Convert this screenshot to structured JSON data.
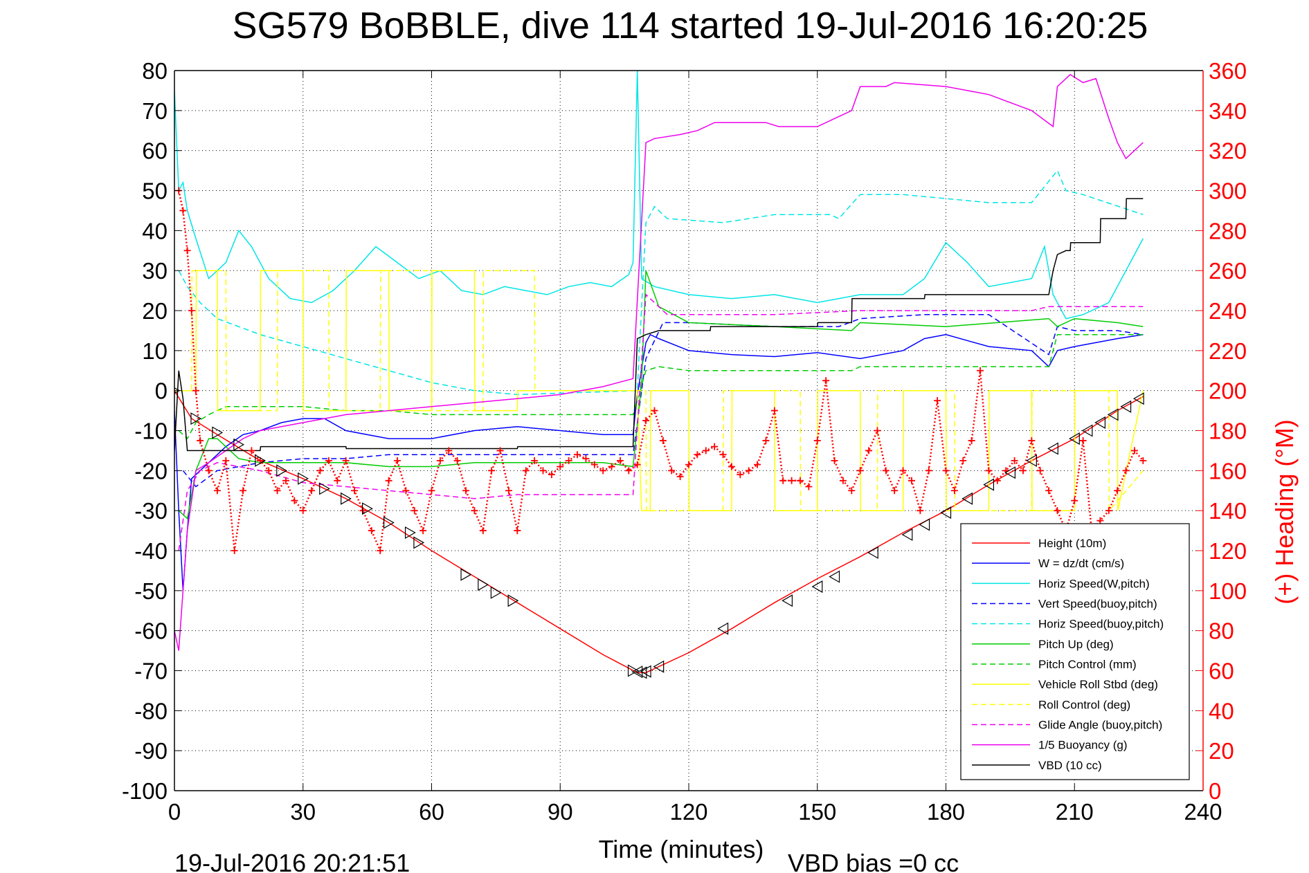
{
  "chart_data": {
    "type": "line",
    "title": "SG579 BoBBLE, dive 114 started 19-Jul-2016 16:20:25",
    "xlabel": "Time (minutes)",
    "ylabel_right": "(+) Heading (°M)",
    "xlim": [
      0,
      240
    ],
    "ylim": [
      -100,
      80
    ],
    "ylim_right": [
      0,
      360
    ],
    "x_ticks": [
      "0",
      "30",
      "60",
      "90",
      "120",
      "150",
      "180",
      "210",
      "240"
    ],
    "y_ticks": [
      "80",
      "70",
      "60",
      "50",
      "40",
      "30",
      "20",
      "10",
      "0",
      "-10",
      "-20",
      "-30",
      "-40",
      "-50",
      "-60",
      "-70",
      "-80",
      "-90",
      "-100"
    ],
    "y_ticks_right": [
      "360",
      "340",
      "320",
      "300",
      "280",
      "260",
      "240",
      "220",
      "200",
      "180",
      "160",
      "140",
      "120",
      "100",
      "80",
      "60",
      "40",
      "20",
      "0"
    ],
    "grid": "dotted",
    "legend_position": "bottom-right",
    "footer_left": "19-Jul-2016 20:21:51",
    "footer_right": "VBD bias =0 cc",
    "series": [
      {
        "name": "Height (10m)",
        "color": "#ff0000",
        "style": "solid",
        "x": [
          0,
          4,
          10,
          20,
          30,
          40,
          50,
          60,
          70,
          80,
          90,
          100,
          108,
          110,
          113,
          120,
          130,
          140,
          150,
          160,
          170,
          180,
          190,
          200,
          210,
          220,
          226
        ],
        "y": [
          0,
          -7,
          -11,
          -17.5,
          -22,
          -27,
          -33,
          -40,
          -46.5,
          -53,
          -59.5,
          -66,
          -70.5,
          -70.5,
          -69,
          -65.5,
          -59.5,
          -53,
          -47,
          -41.5,
          -35.5,
          -30,
          -23.5,
          -17.5,
          -12,
          -5,
          -1.5
        ]
      },
      {
        "name": "W = dz/dt (cm/s)",
        "color": "#0000ff",
        "style": "solid",
        "x": [
          0,
          1,
          2,
          3,
          4,
          6,
          8,
          12,
          16,
          20,
          25,
          30,
          35,
          40,
          50,
          60,
          70,
          80,
          90,
          100,
          107,
          108,
          110,
          111,
          113,
          120,
          130,
          140,
          150,
          160,
          170,
          175,
          180,
          190,
          200,
          204,
          206,
          210,
          215,
          220,
          226
        ],
        "y": [
          -5,
          -30,
          -50,
          -35,
          -22,
          -20,
          -18,
          -14,
          -11,
          -10,
          -8,
          -7,
          -7,
          -10,
          -12,
          -12,
          -10,
          -9,
          -10,
          -11,
          -11,
          -1,
          12,
          14,
          13,
          10,
          9,
          8.5,
          9.5,
          8,
          10,
          13,
          14,
          11,
          10,
          6,
          10,
          11,
          12,
          13,
          14
        ]
      },
      {
        "name": "Horiz Speed(W,pitch)",
        "color": "#00e5e5",
        "style": "solid",
        "x": [
          0,
          1,
          2,
          3,
          5,
          8,
          12,
          15,
          18,
          22,
          27,
          32,
          37,
          42,
          47,
          52,
          57,
          62,
          67,
          72,
          77,
          82,
          87,
          92,
          97,
          102,
          106,
          107,
          108,
          109,
          112,
          120,
          130,
          140,
          150,
          160,
          170,
          175,
          180,
          185,
          190,
          200,
          203,
          205,
          208,
          212,
          218,
          222,
          226
        ],
        "y": [
          75,
          50,
          52,
          45,
          38,
          28,
          32,
          40,
          36,
          28,
          23,
          22,
          25,
          30,
          36,
          32,
          28,
          30,
          25,
          24,
          26,
          25,
          24,
          26,
          27,
          26,
          29,
          32,
          80,
          28,
          26,
          24,
          23,
          24,
          22,
          24,
          24,
          28,
          37,
          32,
          26,
          28,
          36,
          24,
          18,
          19,
          22,
          30,
          38
        ]
      },
      {
        "name": "Vert Speed(buoy,pitch)",
        "color": "#0000ff",
        "style": "dashed",
        "x": [
          2,
          5,
          10,
          20,
          30,
          40,
          50,
          60,
          70,
          80,
          90,
          100,
          107,
          110,
          114,
          120,
          140,
          155,
          160,
          175,
          190,
          204,
          206,
          210,
          220,
          226
        ],
        "y": [
          -20,
          -24,
          -20,
          -18,
          -17,
          -17,
          -16,
          -16,
          -16,
          -16,
          -16,
          -16,
          -16,
          8,
          17,
          17,
          16,
          16,
          18,
          19,
          19,
          9,
          16,
          15,
          15,
          14
        ]
      },
      {
        "name": "Horiz Speed(buoy,pitch)",
        "color": "#00e5e5",
        "style": "dashed",
        "x": [
          1,
          3,
          6,
          10,
          20,
          30,
          40,
          50,
          60,
          70,
          80,
          108,
          110,
          112,
          115,
          128,
          140,
          150,
          153,
          155,
          160,
          170,
          180,
          190,
          200,
          206,
          208,
          212,
          226
        ],
        "y": [
          30,
          26,
          22,
          18,
          14,
          11,
          8,
          5,
          2,
          0,
          -1,
          0,
          42,
          46,
          43,
          42,
          44,
          44,
          44,
          43,
          49,
          49,
          48,
          47,
          47,
          55,
          50,
          49,
          44
        ]
      },
      {
        "name": "Pitch Up (deg)",
        "color": "#00cc00",
        "style": "solid",
        "x": [
          1,
          3,
          5,
          8,
          10,
          15,
          20,
          30,
          40,
          50,
          60,
          70,
          80,
          90,
          100,
          107,
          109,
          110,
          113,
          120,
          140,
          158,
          160,
          180,
          204,
          206,
          210,
          220,
          226
        ],
        "y": [
          -30,
          -32,
          -20,
          -12,
          -12,
          -17,
          -18,
          -18,
          -18,
          -19,
          -19,
          -18,
          -18,
          -18,
          -18,
          -19,
          2,
          30,
          21,
          17,
          16,
          15,
          17,
          16,
          18,
          16,
          18,
          17,
          16
        ]
      },
      {
        "name": "Pitch Control (mm)",
        "color": "#00cc00",
        "style": "dashed",
        "x": [
          1,
          3,
          5,
          8,
          12,
          20,
          30,
          40,
          50,
          60,
          70,
          80,
          90,
          100,
          107,
          110,
          113,
          120,
          150,
          158,
          160,
          180,
          200,
          204,
          206,
          226
        ],
        "y": [
          -10,
          -12,
          -8,
          -6,
          -4,
          -4,
          -4,
          -5,
          -5,
          -6,
          -6,
          -6,
          -6,
          -6,
          -6,
          5,
          6,
          5,
          5,
          5,
          6,
          6,
          6,
          6,
          14,
          14
        ]
      },
      {
        "name": "Vehicle Roll Stbd (deg)",
        "color": "#ffff00",
        "style": "solid",
        "x": [
          0,
          5,
          5.1,
          10,
          10.1,
          20,
          20.1,
          30,
          30.1,
          40,
          40.1,
          50,
          50.1,
          60,
          60.1,
          70,
          70.1,
          80,
          80.1,
          90,
          100,
          108,
          109,
          111,
          111.1,
          120,
          120.1,
          130,
          130.1,
          140,
          140.1,
          150,
          150.1,
          160,
          160.1,
          170,
          170.1,
          180,
          180.1,
          190,
          190.1,
          200,
          200.1,
          210,
          210.1,
          220,
          220.1,
          226
        ],
        "y": [
          0,
          0,
          30,
          30,
          -5,
          -5,
          30,
          30,
          -5,
          -5,
          30,
          30,
          -5,
          -5,
          30,
          30,
          -5,
          -5,
          0,
          0,
          0,
          0,
          -30,
          -30,
          0,
          0,
          -30,
          -30,
          0,
          0,
          -30,
          -30,
          0,
          0,
          -30,
          -30,
          0,
          0,
          -30,
          -30,
          0,
          0,
          -30,
          -30,
          0,
          0,
          -30,
          0
        ]
      },
      {
        "name": "Roll Control (deg)",
        "color": "#ffff00",
        "style": "dashed",
        "x": [
          0,
          4,
          4.1,
          12,
          12.1,
          24,
          24.1,
          36,
          36.1,
          48,
          48.1,
          60,
          60.1,
          72,
          72.1,
          84,
          84.1,
          108,
          110,
          110.1,
          128,
          128.1,
          146,
          146.1,
          164,
          164.1,
          182,
          182.1,
          200,
          200.1,
          218,
          218.1,
          226
        ],
        "y": [
          0,
          0,
          30,
          30,
          -5,
          -5,
          30,
          30,
          -5,
          -5,
          30,
          30,
          -5,
          -5,
          30,
          30,
          0,
          0,
          0,
          -30,
          -30,
          0,
          0,
          -30,
          -30,
          0,
          0,
          -30,
          -30,
          0,
          0,
          -30,
          -20
        ]
      },
      {
        "name": "Glide Angle (buoy,pitch)",
        "color": "#ee00ee",
        "style": "dashed",
        "x": [
          1,
          3,
          6,
          10,
          20,
          30,
          40,
          50,
          60,
          70,
          80,
          90,
          100,
          107,
          110,
          115,
          140,
          160,
          180,
          200,
          204,
          206,
          210,
          226
        ],
        "y": [
          -40,
          -25,
          -20,
          -18,
          -20,
          -23,
          -24,
          -25,
          -26,
          -27,
          -26,
          -26,
          -26,
          -26,
          24,
          19,
          19,
          20,
          20,
          20,
          21,
          21,
          21,
          21
        ]
      },
      {
        "name": "1/5 Buoyancy (g)",
        "color": "#ee00ee",
        "style": "solid",
        "x": [
          0,
          1,
          2,
          3,
          5,
          8,
          12,
          16,
          20,
          30,
          40,
          50,
          60,
          70,
          80,
          90,
          100,
          107,
          110,
          112,
          118,
          122,
          126,
          133,
          138,
          141,
          145,
          150,
          158,
          160,
          163,
          166,
          168,
          180,
          190,
          200,
          205,
          206,
          209,
          212,
          215,
          218,
          220,
          222,
          226
        ],
        "y": [
          -60,
          -65,
          -50,
          -35,
          -20,
          -18,
          -15,
          -12,
          -10,
          -8,
          -6,
          -5,
          -4,
          -3,
          -2,
          -1,
          1,
          3,
          62,
          63,
          64,
          65,
          67,
          67,
          67,
          66,
          66,
          66,
          70,
          76,
          76,
          76,
          77,
          76,
          74,
          70,
          66,
          76,
          79,
          77,
          78,
          68,
          62,
          58,
          62
        ]
      },
      {
        "name": "VBD (10 cc)",
        "color": "#000000",
        "style": "solid",
        "x": [
          0,
          1,
          2,
          3,
          3.1,
          20,
          20.1,
          40,
          40.1,
          60,
          60.1,
          80,
          80.1,
          107,
          108,
          110,
          113,
          125,
          125.1,
          150,
          150.1,
          158,
          158.1,
          175,
          175.1,
          204,
          205,
          206,
          208,
          209,
          209.1,
          216,
          216.1,
          222,
          222.1,
          226
        ],
        "y": [
          -15,
          5,
          -2,
          -15,
          -15,
          -15,
          -14,
          -14,
          -14.5,
          -14.5,
          -14.5,
          -14.5,
          -14,
          -14,
          13,
          14,
          15,
          15,
          16,
          16,
          17,
          17,
          23,
          23,
          24,
          24,
          30,
          34,
          35,
          35,
          37,
          37,
          43,
          43,
          48,
          48
        ]
      },
      {
        "name": "(+) Heading",
        "color": "#ff0000",
        "style": "marker-plus",
        "axis": "right",
        "x": [
          1,
          2,
          3,
          4,
          5,
          6,
          8,
          10,
          12,
          14,
          16,
          18,
          20,
          22,
          24,
          26,
          28,
          30,
          32,
          34,
          36,
          38,
          40,
          42,
          44,
          46,
          48,
          50,
          52,
          54,
          56,
          58,
          60,
          62,
          64,
          66,
          68,
          70,
          72,
          74,
          76,
          78,
          80,
          82,
          84,
          86,
          88,
          90,
          92,
          94,
          96,
          98,
          100,
          102,
          104,
          106,
          108,
          110,
          112,
          114,
          116,
          118,
          120,
          122,
          124,
          126,
          128,
          130,
          132,
          134,
          136,
          138,
          140,
          142,
          144,
          146,
          148,
          150,
          152,
          154,
          156,
          158,
          160,
          162,
          164,
          166,
          168,
          170,
          172,
          174,
          176,
          178,
          180,
          182,
          184,
          186,
          188,
          190,
          192,
          194,
          196,
          198,
          200,
          202,
          204,
          206,
          208,
          210,
          212,
          214,
          216,
          218,
          220,
          222,
          224,
          226
        ],
        "y": [
          300,
          290,
          270,
          240,
          200,
          175,
          160,
          150,
          165,
          120,
          150,
          170,
          165,
          160,
          150,
          155,
          145,
          140,
          150,
          160,
          165,
          155,
          165,
          150,
          140,
          130,
          120,
          155,
          165,
          150,
          140,
          130,
          150,
          165,
          170,
          165,
          150,
          140,
          130,
          160,
          170,
          150,
          130,
          160,
          165,
          160,
          158,
          162,
          165,
          168,
          166,
          163,
          160,
          162,
          165,
          160,
          163,
          185,
          190,
          175,
          160,
          157,
          163,
          168,
          170,
          172,
          168,
          162,
          158,
          160,
          163,
          175,
          190,
          155,
          155,
          155,
          152,
          175,
          205,
          165,
          155,
          150,
          160,
          170,
          180,
          160,
          150,
          160,
          155,
          140,
          160,
          195,
          160,
          150,
          165,
          175,
          210,
          160,
          155,
          160,
          165,
          160,
          175,
          160,
          150,
          140,
          130,
          145,
          175,
          130,
          135,
          140,
          150,
          160,
          170,
          165
        ]
      }
    ],
    "track_markers": {
      "name": "Height (10m) markers",
      "color": "#000000",
      "x": [
        0,
        5,
        10,
        15,
        20,
        25,
        30,
        35,
        40,
        45,
        50,
        55,
        57,
        68,
        72,
        75,
        79,
        107,
        108,
        109,
        110,
        113,
        128,
        143,
        150,
        154,
        163,
        171,
        175,
        180,
        185,
        190,
        195,
        200,
        205,
        210,
        213,
        216,
        219,
        222,
        225
      ],
      "y": [
        0,
        -7,
        -10.5,
        -13.5,
        -17.5,
        -20,
        -22,
        -24.5,
        -27,
        -29.5,
        -33,
        -35.5,
        -38,
        -46,
        -48.5,
        -50.5,
        -52.5,
        -70,
        -70.3,
        -70.5,
        -70.2,
        -69,
        -59.5,
        -52.5,
        -49,
        -46.5,
        -40.5,
        -36,
        -33.5,
        -30.5,
        -27,
        -23.5,
        -20.5,
        -17.5,
        -14.5,
        -12,
        -10,
        -8,
        -6,
        -4,
        -2
      ]
    }
  }
}
